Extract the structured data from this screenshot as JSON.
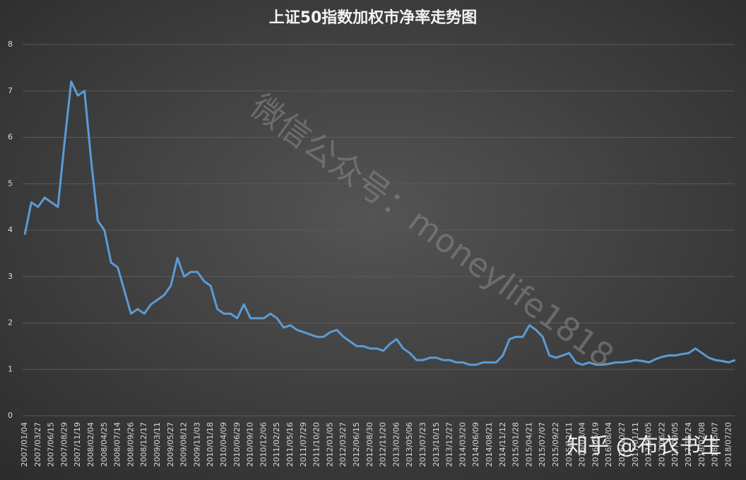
{
  "chart_data": {
    "type": "line",
    "title": "上证50指数加权市净率走势图",
    "categories": [
      "2007/01/04",
      null,
      "2007/03/27",
      null,
      "2007/06/15",
      null,
      "2007/08/29",
      null,
      "2007/11/19",
      null,
      "2008/02/04",
      null,
      "2008/04/25",
      null,
      "2008/07/14",
      null,
      "2008/09/26",
      null,
      "2008/12/17",
      null,
      "2009/03/11",
      null,
      "2009/05/27",
      null,
      "2009/08/12",
      null,
      "2009/11/03",
      null,
      "2010/01/18",
      null,
      "2010/04/09",
      null,
      "2010/06/29",
      null,
      "2010/09/10",
      null,
      "2010/12/06",
      null,
      "2011/02/25",
      null,
      "2011/05/16",
      null,
      "2011/07/29",
      null,
      "2011/10/20",
      null,
      "2012/01/05",
      null,
      "2012/03/27",
      null,
      "2012/06/15",
      null,
      "2012/08/30",
      null,
      "2012/11/20",
      null,
      "2013/02/06",
      null,
      "2013/05/06",
      null,
      "2013/07/23",
      null,
      "2013/10/15",
      null,
      "2013/12/27",
      null,
      "2014/03/20",
      null,
      "2014/06/09",
      null,
      "2014/08/21",
      null,
      "2014/11/12",
      null,
      "2015/01/28",
      null,
      "2015/04/21",
      null,
      "2015/07/07",
      null,
      "2015/09/22",
      null,
      "2015/12/11",
      null,
      "2016/03/04",
      null,
      "2016/05/19",
      null,
      "2016/08/04",
      null,
      "2016/10/27",
      null,
      "2017/01/11",
      null,
      "2017/04/05",
      null,
      "2017/06/22",
      null,
      "2017/09/05",
      null,
      "2017/11/24",
      null,
      "2018/02/08",
      null,
      "2018/05/07",
      null,
      "2018/07/20",
      null
    ],
    "series": [
      {
        "name": "市净率",
        "color": "#5b9bd5",
        "values": [
          3.9,
          4.6,
          4.5,
          4.7,
          4.6,
          4.5,
          5.9,
          7.2,
          6.9,
          7.0,
          5.5,
          4.2,
          4.0,
          3.3,
          3.2,
          2.7,
          2.2,
          2.3,
          2.2,
          2.4,
          2.5,
          2.6,
          2.8,
          3.4,
          3.0,
          3.1,
          3.1,
          2.9,
          2.8,
          2.3,
          2.2,
          2.2,
          2.1,
          2.4,
          2.1,
          2.1,
          2.1,
          2.2,
          2.1,
          1.9,
          1.95,
          1.85,
          1.8,
          1.75,
          1.7,
          1.7,
          1.8,
          1.85,
          1.7,
          1.6,
          1.5,
          1.5,
          1.45,
          1.45,
          1.4,
          1.55,
          1.65,
          1.45,
          1.35,
          1.2,
          1.2,
          1.25,
          1.25,
          1.2,
          1.2,
          1.15,
          1.15,
          1.1,
          1.1,
          1.15,
          1.15,
          1.15,
          1.3,
          1.65,
          1.7,
          1.7,
          1.95,
          1.85,
          1.7,
          1.3,
          1.25,
          1.3,
          1.35,
          1.15,
          1.1,
          1.15,
          1.1,
          1.1,
          1.12,
          1.15,
          1.15,
          1.17,
          1.2,
          1.18,
          1.15,
          1.22,
          1.27,
          1.3,
          1.3,
          1.33,
          1.35,
          1.45,
          1.35,
          1.25,
          1.2,
          1.18,
          1.15,
          1.2
        ]
      }
    ],
    "ylim": [
      0,
      8
    ],
    "yticks": [
      0,
      1,
      2,
      3,
      4,
      5,
      6,
      7,
      8
    ],
    "grid": true,
    "annotations": [
      "微信公众号：moneylife1818",
      "知乎 @布衣书生"
    ]
  }
}
